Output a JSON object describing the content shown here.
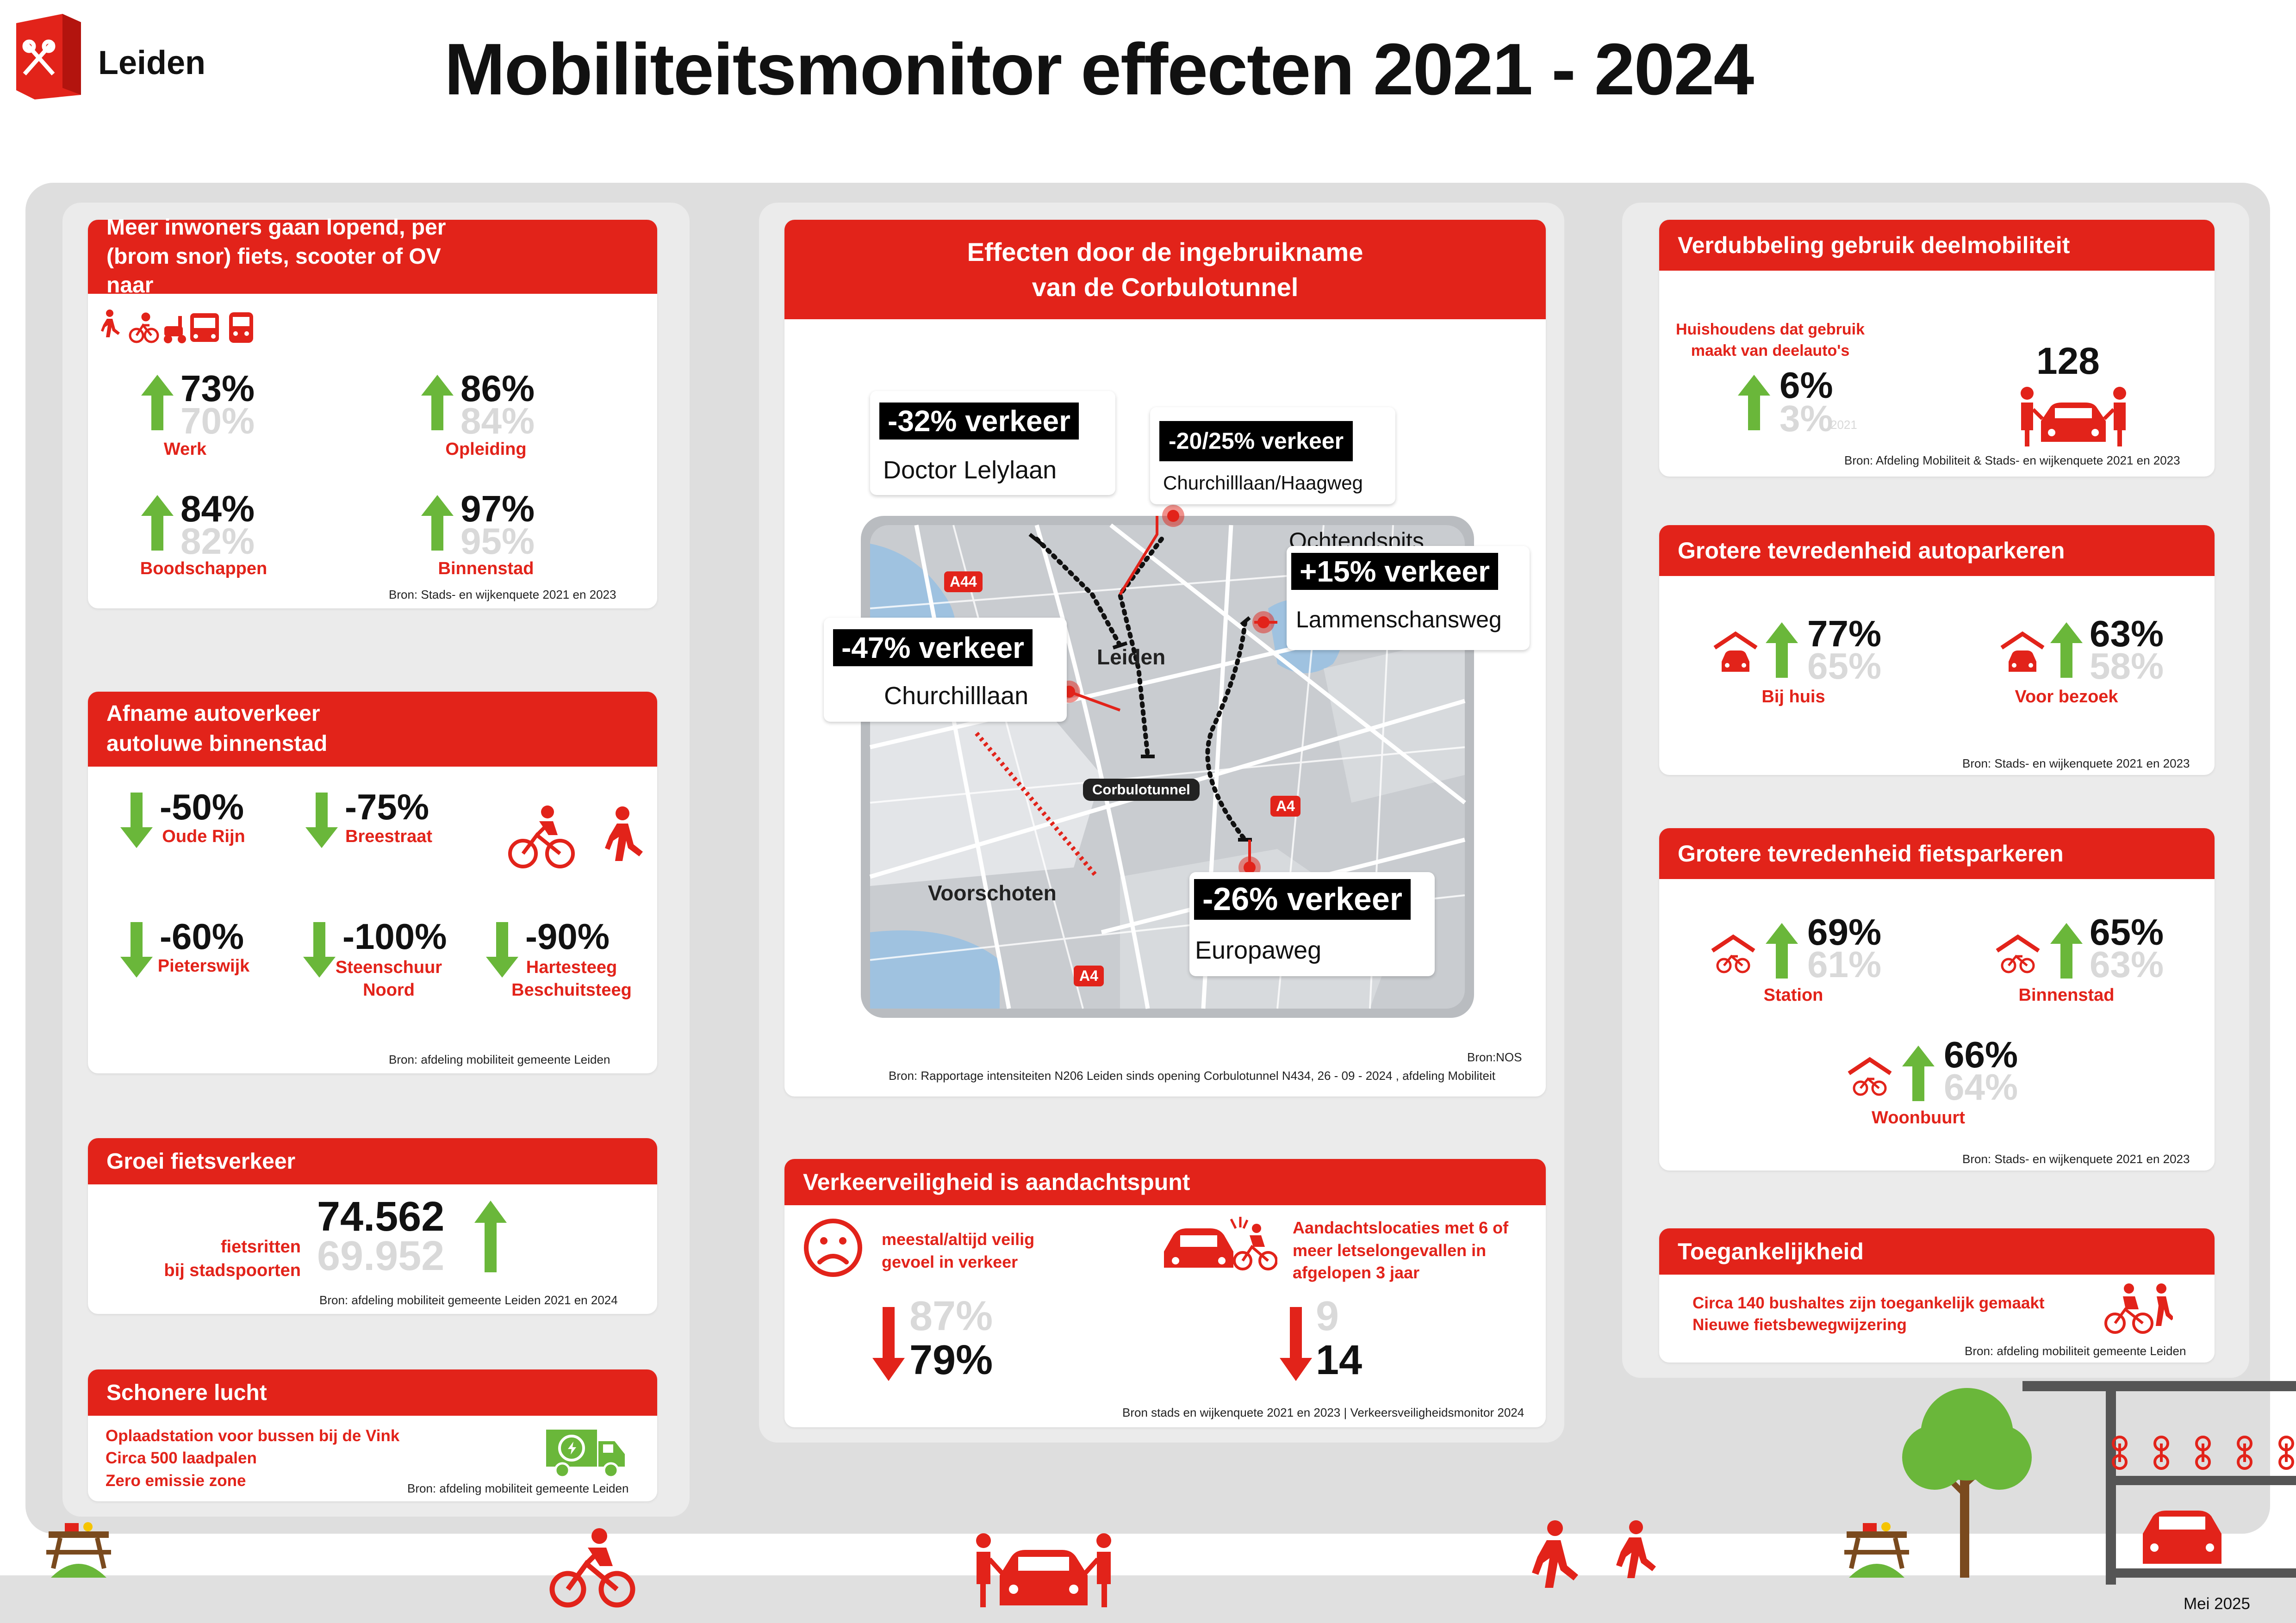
{
  "brand": {
    "name": "Leiden",
    "color": "#e2231a"
  },
  "page": {
    "title": "Mobiliteitsmonitor effecten 2021 - 2024",
    "date": "Mei 2025"
  },
  "walking": {
    "title": "Meer inwoners gaan lopend, per (brom snor) fiets, scooter of OV naar",
    "icons": [
      "pedestrian-icon",
      "bicycle-icon",
      "scooter-icon",
      "bus-icon",
      "train-icon"
    ],
    "items": [
      {
        "new": "73%",
        "old": "70%",
        "label": "Werk"
      },
      {
        "new": "86%",
        "old": "84%",
        "label": "Opleiding"
      },
      {
        "new": "84%",
        "old": "82%",
        "label": "Boodschappen"
      },
      {
        "new": "97%",
        "old": "95%",
        "label": "Binnenstad"
      }
    ],
    "source": "Bron: Stads- en wijkenquete 2021 en 2023"
  },
  "car_traffic": {
    "title_line1": "Afname autoverkeer",
    "title_line2": "autoluwe binnenstad",
    "items": [
      {
        "value": "-50%",
        "label": "Oude Rijn",
        "label2": ""
      },
      {
        "value": "-75%",
        "label": "Breestraat",
        "label2": ""
      },
      {
        "value": "-60%",
        "label": "Pieterswijk",
        "label2": ""
      },
      {
        "value": "-100%",
        "label": "Steenschuur",
        "label2": "Noord"
      },
      {
        "value": "-90%",
        "label": "Hartesteeg",
        "label2": "Beschuitsteeg"
      }
    ],
    "source": "Bron: afdeling mobiliteit gemeente Leiden"
  },
  "cycling": {
    "title": "Groei fietsverkeer",
    "label_line1": "fietsritten",
    "label_line2": "bij stadspoorten",
    "new": "74.562",
    "old": "69.952",
    "source": "Bron: afdeling mobiliteit gemeente Leiden 2021 en 2024"
  },
  "air": {
    "title": "Schonere lucht",
    "lines": [
      "Oplaadstation voor bussen bij de Vink",
      "Circa 500 laadpalen",
      "Zero emissie zone"
    ],
    "source": "Bron: afdeling mobiliteit gemeente Leiden"
  },
  "tunnel": {
    "title_line1": "Effecten door de ingebruikname",
    "title_line2": "van de Corbulotunnel",
    "callouts": [
      {
        "value": "-32% verkeer",
        "place": "Doctor Lelylaan",
        "note": ""
      },
      {
        "value": "-20/25% verkeer",
        "place": "Churchilllaan/Haagweg",
        "note": ""
      },
      {
        "value": "+15% verkeer",
        "place": "Lammenschansweg",
        "note": "Ochtendspits"
      },
      {
        "value": "-47% verkeer",
        "place": "Churchilllaan",
        "note": ""
      },
      {
        "value": "-26% verkeer",
        "place": "Europaweg",
        "note": ""
      }
    ],
    "map_labels": {
      "leiden": "Leiden",
      "voorschoten": "Voorschoten",
      "tunnel": "Corbulotunnel",
      "a44": "A44",
      "a4a": "A4",
      "a4b": "A4"
    },
    "source1": "Bron:NOS",
    "source2": "Bron: Rapportage intensiteiten N206 Leiden sinds opening Corbulotunnel N434, 26 - 09 - 2024 , afdeling Mobiliteit"
  },
  "safety": {
    "title": "Verkeerveiligheid is aandachtspunt",
    "left_label_line1": "meestal/altijd veilig",
    "left_label_line2": "gevoel in verkeer",
    "left_old": "87%",
    "left_new": "79%",
    "right_label_line1": "Aandachtslocaties met 6 of",
    "right_label_line2": "meer letselongevallen in",
    "right_label_line3": "afgelopen 3 jaar",
    "right_old": "9",
    "right_new": "14",
    "source": "Bron stads en wijkenquete 2021 en 2023 | Verkeersveiligheidsmonitor 2024"
  },
  "shared": {
    "title": "Verdubbeling gebruik deelmobiliteit",
    "label_line1": "Huishoudens dat gebruik",
    "label_line2": "maakt van deelauto's",
    "new": "6%",
    "old": "3%",
    "old_year": "2021",
    "cars": "128",
    "source": "Bron: Afdeling Mobiliteit & Stads- en wijkenquete 2021 en 2023"
  },
  "car_parking": {
    "title": "Grotere tevredenheid autoparkeren",
    "items": [
      {
        "new": "77%",
        "old": "65%",
        "label": "Bij huis"
      },
      {
        "new": "63%",
        "old": "58%",
        "label": "Voor bezoek"
      }
    ],
    "source": "Bron: Stads- en wijkenquete 2021 en 2023"
  },
  "bike_parking": {
    "title": "Grotere tevredenheid fietsparkeren",
    "items": [
      {
        "new": "69%",
        "old": "61%",
        "label": "Station"
      },
      {
        "new": "65%",
        "old": "63%",
        "label": "Binnenstad"
      },
      {
        "new": "66%",
        "old": "64%",
        "label": "Woonbuurt"
      }
    ],
    "source": "Bron: Stads- en wijkenquete 2021 en 2023"
  },
  "access": {
    "title": "Toegankelijkheid",
    "line1": "Circa 140 bushaltes zijn toegankelijk gemaakt",
    "line2": "Nieuwe fietsbewegwijzering",
    "source": "Bron: afdeling mobiliteit gemeente Leiden"
  }
}
